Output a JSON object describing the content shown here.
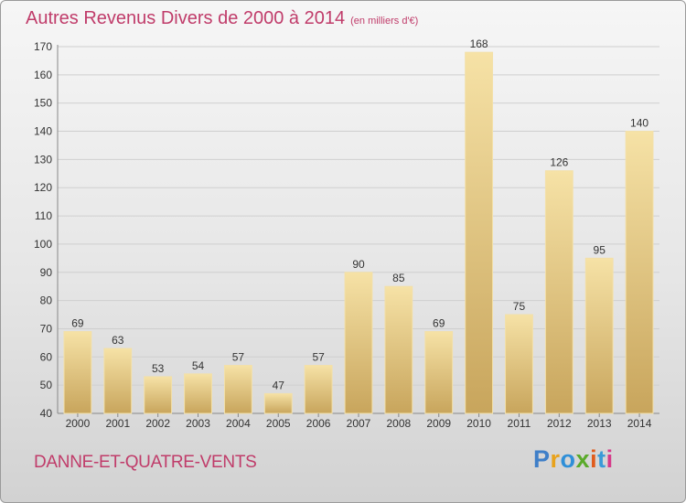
{
  "title": "Autres Revenus Divers de 2000 à 2014",
  "title_unit": "(en milliers d'€)",
  "location": "DANNE-ET-QUATRE-VENTS",
  "logo": {
    "text": "Proxiti",
    "letters": [
      {
        "ch": "P",
        "color": "#3f7fc8"
      },
      {
        "ch": "r",
        "color": "#e8a21c"
      },
      {
        "ch": "o",
        "color": "#2f8fd8"
      },
      {
        "ch": "x",
        "color": "#5aaa2a"
      },
      {
        "ch": "i",
        "color": "#e05c1c"
      },
      {
        "ch": "t",
        "color": "#3a9ad8"
      },
      {
        "ch": "i",
        "color": "#d63a8a"
      }
    ]
  },
  "colors": {
    "title": "#c03c6a",
    "bar_light": "#f6e2a6",
    "bar_dark": "#c8a55c",
    "grid": "#cfcfcf",
    "axis_text": "#333333"
  },
  "chart_data": {
    "type": "bar",
    "title": "Autres Revenus Divers de 2000 à 2014",
    "ylabel": "",
    "xlabel": "",
    "categories": [
      "2000",
      "2001",
      "2002",
      "2003",
      "2004",
      "2005",
      "2006",
      "2007",
      "2008",
      "2009",
      "2010",
      "2011",
      "2012",
      "2013",
      "2014"
    ],
    "values": [
      69,
      63,
      53,
      54,
      57,
      47,
      57,
      90,
      85,
      69,
      168,
      75,
      126,
      95,
      140
    ],
    "ylim": [
      40,
      170
    ],
    "yticks": [
      40,
      50,
      60,
      70,
      80,
      90,
      100,
      110,
      120,
      130,
      140,
      150,
      160,
      170
    ],
    "grid": true,
    "legend": "none"
  }
}
